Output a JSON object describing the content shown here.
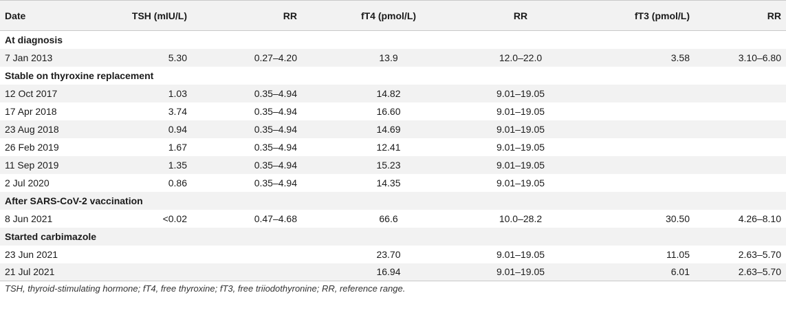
{
  "table": {
    "headers": [
      "Date",
      "TSH (mIU/L)",
      "RR",
      "fT4 (pmol/L)",
      "RR",
      "fT3 (pmol/L)",
      "RR"
    ],
    "rows": [
      {
        "section": "At diagnosis"
      },
      {
        "cells": [
          "7 Jan 2013",
          "5.30",
          "0.27–4.20",
          "13.9",
          "12.0–22.0",
          "3.58",
          "3.10–6.80"
        ]
      },
      {
        "section": "Stable on thyroxine replacement"
      },
      {
        "cells": [
          "12 Oct 2017",
          "1.03",
          "0.35–4.94",
          "14.82",
          "9.01–19.05",
          "",
          ""
        ]
      },
      {
        "cells": [
          "17 Apr 2018",
          "3.74",
          "0.35–4.94",
          "16.60",
          "9.01–19.05",
          "",
          ""
        ]
      },
      {
        "cells": [
          "23 Aug 2018",
          "0.94",
          "0.35–4.94",
          "14.69",
          "9.01–19.05",
          "",
          ""
        ]
      },
      {
        "cells": [
          "26 Feb 2019",
          "1.67",
          "0.35–4.94",
          "12.41",
          "9.01–19.05",
          "",
          ""
        ]
      },
      {
        "cells": [
          "11 Sep 2019",
          "1.35",
          "0.35–4.94",
          "15.23",
          "9.01–19.05",
          "",
          ""
        ]
      },
      {
        "cells": [
          "2 Jul 2020",
          "0.86",
          "0.35–4.94",
          "14.35",
          "9.01–19.05",
          "",
          ""
        ]
      },
      {
        "section": "After SARS-CoV-2 vaccination"
      },
      {
        "cells": [
          "8 Jun 2021",
          "<0.02",
          "0.47–4.68",
          "66.6",
          "10.0–28.2",
          "30.50",
          "4.26–8.10"
        ]
      },
      {
        "section": "Started carbimazole"
      },
      {
        "cells": [
          "23 Jun 2021",
          "",
          "",
          "23.70",
          "9.01–19.05",
          "11.05",
          "2.63–5.70"
        ]
      },
      {
        "cells": [
          "21 Jul 2021",
          "",
          "",
          "16.94",
          "9.01–19.05",
          "6.01",
          "2.63–5.70"
        ]
      }
    ]
  },
  "footnote": "TSH, thyroid-stimulating hormone; fT4, free thyroxine; fT3, free triiodothyronine; RR, reference range."
}
